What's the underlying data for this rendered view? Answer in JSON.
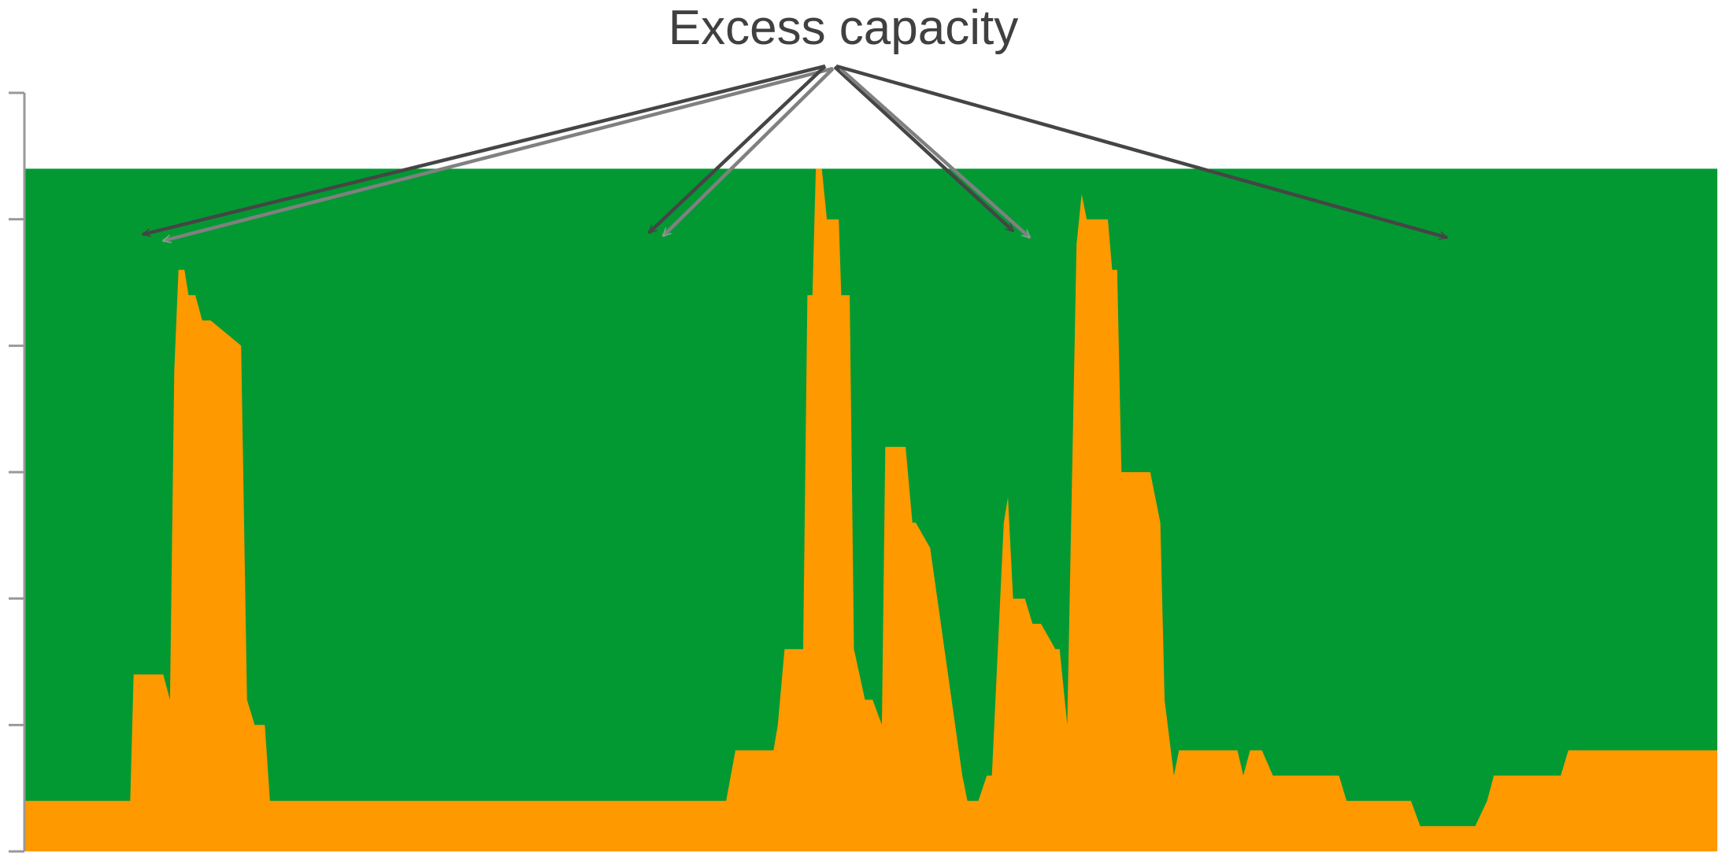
{
  "chart_data": {
    "type": "area",
    "title": "Excess capacity",
    "xlabel": "",
    "ylabel": "",
    "grid": false,
    "legend": "none",
    "ylim": [
      0,
      6
    ],
    "y_ticks": [
      0,
      1,
      2,
      3,
      4,
      5,
      6
    ],
    "xlim": [
      0,
      200
    ],
    "capacity_level": 5.4,
    "colors": {
      "capacity": "#029933",
      "demand": "#ff9900",
      "axis": "#999999",
      "arrow_dark": "#454545",
      "arrow_light": "#808080",
      "title": "#404040"
    },
    "series": [
      {
        "role": "demand",
        "x": [
          0,
          12.5,
          12.9,
          16.4,
          17.2,
          17.7,
          18.2,
          18.9,
          19.4,
          20.2,
          21.0,
          22.0,
          25.6,
          26.3,
          27.2,
          28.4,
          29.0,
          30.8,
          31.5,
          82.9,
          84.0,
          88.5,
          89.0,
          89.8,
          90.4,
          92.0,
          92.5,
          93.1,
          93.5,
          94.2,
          94.8,
          96.2,
          96.5,
          97.5,
          98.0,
          99.3,
          100.2,
          101.3,
          101.7,
          102.4,
          102.9,
          103.6,
          104.1,
          104.9,
          105.3,
          107.0,
          110.8,
          111.4,
          112.1,
          112.7,
          113.7,
          114.3,
          115.7,
          116.2,
          116.8,
          117.4,
          118.2,
          119.1,
          120.1,
          121.8,
          122.3,
          123.2,
          124.3,
          124.9,
          125.5,
          126.9,
          128.0,
          128.5,
          129.1,
          129.6,
          130.3,
          130.8,
          133.0,
          134.2,
          134.7,
          135.8,
          136.4,
          143.3,
          144.0,
          144.8,
          145.6,
          146.2,
          147.5,
          154.7,
          155.3,
          156.2,
          163.8,
          164.9,
          170.4,
          171.4,
          172.8,
          173.6,
          180.8,
          181.5,
          182.4,
          189.2,
          190.1,
          197.1,
          200
        ],
        "values": [
          0.4,
          0.4,
          1.4,
          1.4,
          1.2,
          3.8,
          4.6,
          4.6,
          4.4,
          4.4,
          4.2,
          4.2,
          4.0,
          1.2,
          1.0,
          1.0,
          0.4,
          0.4,
          0.4,
          0.4,
          0.8,
          0.8,
          1.0,
          1.6,
          1.6,
          1.6,
          4.4,
          4.4,
          5.4,
          5.4,
          5.0,
          5.0,
          4.4,
          4.4,
          1.6,
          1.2,
          1.2,
          1.0,
          3.2,
          3.2,
          3.2,
          3.2,
          3.2,
          2.6,
          2.6,
          2.4,
          0.6,
          0.4,
          0.4,
          0.4,
          0.6,
          0.6,
          2.6,
          2.8,
          2.0,
          2.0,
          2.0,
          1.8,
          1.8,
          1.6,
          1.6,
          1.0,
          4.8,
          5.2,
          5.0,
          5.0,
          5.0,
          4.6,
          4.6,
          3.0,
          3.0,
          3.0,
          3.0,
          2.6,
          1.2,
          0.6,
          0.8,
          0.8,
          0.6,
          0.8,
          0.8,
          0.8,
          0.6,
          0.6,
          0.6,
          0.4,
          0.4,
          0.2,
          0.2,
          0.2,
          0.4,
          0.6,
          0.6,
          0.6,
          0.8,
          0.8,
          0.8,
          0.8,
          0.8
        ]
      }
    ]
  }
}
